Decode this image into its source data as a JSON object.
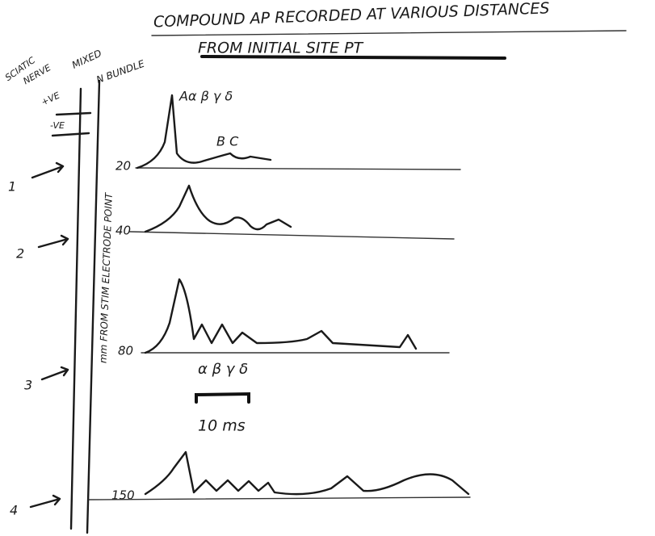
{
  "header": {
    "title": "COMPOUND AP RECORDED AT VARIOUS DISTANCES",
    "subtitle": "FROM INITIAL SITE PT"
  },
  "nerve": {
    "labels": [
      "SCIATIC",
      "NERVE",
      "MIXED",
      "N BUNDLE"
    ],
    "positive": "+VE",
    "negative": "-VE",
    "axis_label": "mm FROM STIM ELECTRODE POINT"
  },
  "traces": [
    {
      "marker": "1",
      "distance": "20"
    },
    {
      "marker": "2",
      "distance": "40"
    },
    {
      "marker": "3",
      "distance": "80"
    },
    {
      "marker": "4",
      "distance": "150"
    }
  ],
  "annotations": [
    "Aα β γ δ",
    "B C",
    "α β γ δ"
  ],
  "scale_bar": "10 ms"
}
